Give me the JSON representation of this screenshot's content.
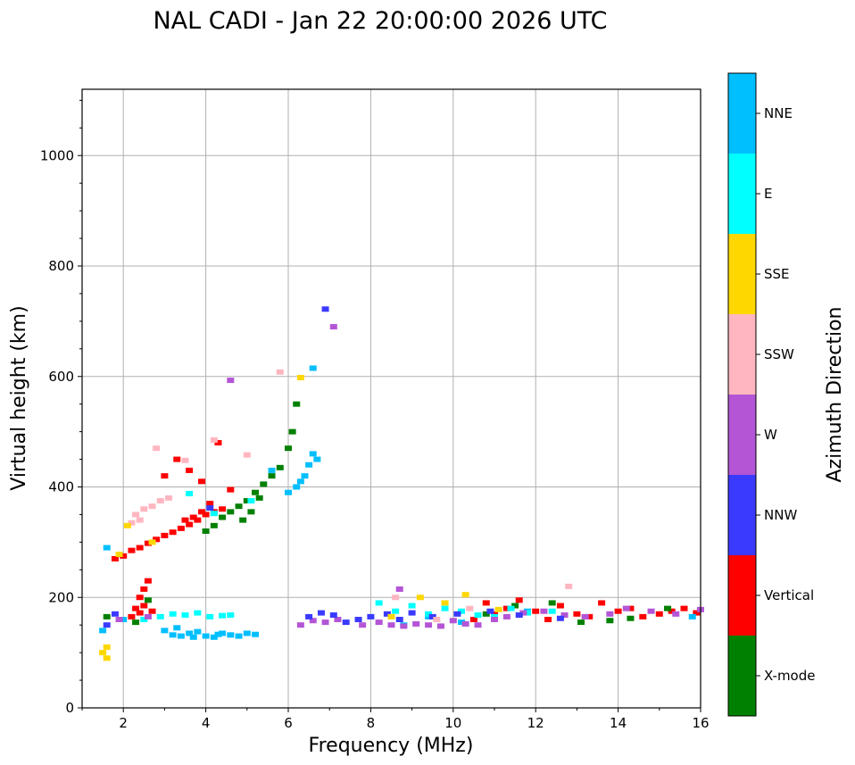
{
  "chart_data": {
    "type": "scatter",
    "title": "NAL CADI - Jan 22 20:00:00 2026 UTC",
    "xlabel": "Frequency (MHz)",
    "ylabel": "Virtual height (km)",
    "xlim": [
      1,
      16
    ],
    "ylim": [
      0,
      1120
    ],
    "xticks": [
      2,
      4,
      6,
      8,
      10,
      12,
      14,
      16
    ],
    "yticks": [
      0,
      200,
      400,
      600,
      800,
      1000
    ],
    "grid": true,
    "colorbar": {
      "label": "Azimuth Direction",
      "categories": [
        {
          "name": "X-mode",
          "color": "#008000"
        },
        {
          "name": "Vertical",
          "color": "#ff0000"
        },
        {
          "name": "NNW",
          "color": "#3a3aff"
        },
        {
          "name": "W",
          "color": "#b455d6"
        },
        {
          "name": "SSW",
          "color": "#ffb6c1"
        },
        {
          "name": "SSE",
          "color": "#ffd700"
        },
        {
          "name": "E",
          "color": "#00ffff"
        },
        {
          "name": "NNE",
          "color": "#00bfff"
        }
      ]
    },
    "series": [
      {
        "name": "Vertical",
        "points": [
          [
            1.8,
            270
          ],
          [
            2.0,
            275
          ],
          [
            2.2,
            285
          ],
          [
            2.4,
            290
          ],
          [
            2.6,
            298
          ],
          [
            2.8,
            305
          ],
          [
            3.0,
            312
          ],
          [
            3.2,
            318
          ],
          [
            3.4,
            325
          ],
          [
            3.6,
            332
          ],
          [
            3.8,
            340
          ],
          [
            4.0,
            350
          ],
          [
            4.2,
            355
          ],
          [
            4.4,
            360
          ],
          [
            3.5,
            340
          ],
          [
            3.7,
            345
          ],
          [
            3.9,
            355
          ],
          [
            4.1,
            370
          ],
          [
            2.2,
            165
          ],
          [
            2.4,
            172
          ],
          [
            2.5,
            185
          ],
          [
            2.4,
            200
          ],
          [
            2.5,
            215
          ],
          [
            2.6,
            230
          ],
          [
            2.7,
            175
          ],
          [
            2.3,
            180
          ],
          [
            3.0,
            420
          ],
          [
            3.3,
            450
          ],
          [
            3.6,
            430
          ],
          [
            3.9,
            410
          ],
          [
            4.3,
            480
          ],
          [
            4.6,
            395
          ],
          [
            10.5,
            160
          ],
          [
            10.8,
            190
          ],
          [
            11.0,
            170
          ],
          [
            11.3,
            180
          ],
          [
            11.6,
            195
          ],
          [
            12.0,
            175
          ],
          [
            12.3,
            160
          ],
          [
            12.6,
            185
          ],
          [
            13.0,
            170
          ],
          [
            13.3,
            165
          ],
          [
            13.6,
            190
          ],
          [
            14.0,
            175
          ],
          [
            14.3,
            180
          ],
          [
            14.6,
            165
          ],
          [
            15.0,
            170
          ],
          [
            15.3,
            175
          ],
          [
            15.6,
            180
          ],
          [
            15.9,
            172
          ]
        ]
      },
      {
        "name": "X-mode",
        "points": [
          [
            4.0,
            320
          ],
          [
            4.2,
            330
          ],
          [
            4.4,
            345
          ],
          [
            4.6,
            355
          ],
          [
            4.8,
            365
          ],
          [
            5.0,
            375
          ],
          [
            5.2,
            390
          ],
          [
            5.4,
            405
          ],
          [
            5.6,
            420
          ],
          [
            5.8,
            435
          ],
          [
            6.0,
            470
          ],
          [
            6.1,
            500
          ],
          [
            6.2,
            550
          ],
          [
            5.1,
            355
          ],
          [
            4.9,
            340
          ],
          [
            5.3,
            380
          ],
          [
            1.6,
            165
          ],
          [
            2.3,
            155
          ],
          [
            2.6,
            195
          ],
          [
            10.8,
            170
          ],
          [
            11.5,
            185
          ],
          [
            12.4,
            190
          ],
          [
            13.1,
            155
          ],
          [
            13.8,
            158
          ],
          [
            14.3,
            162
          ],
          [
            15.2,
            180
          ]
        ]
      },
      {
        "name": "NNE",
        "points": [
          [
            3.0,
            140
          ],
          [
            3.2,
            132
          ],
          [
            3.4,
            130
          ],
          [
            3.6,
            135
          ],
          [
            3.8,
            138
          ],
          [
            4.0,
            130
          ],
          [
            4.2,
            128
          ],
          [
            4.4,
            135
          ],
          [
            4.6,
            132
          ],
          [
            4.8,
            130
          ],
          [
            5.0,
            135
          ],
          [
            5.2,
            133
          ],
          [
            3.3,
            145
          ],
          [
            3.7,
            128
          ],
          [
            4.3,
            133
          ],
          [
            6.0,
            390
          ],
          [
            6.2,
            400
          ],
          [
            6.4,
            420
          ],
          [
            6.5,
            440
          ],
          [
            6.6,
            460
          ],
          [
            6.3,
            410
          ],
          [
            6.7,
            450
          ],
          [
            5.6,
            430
          ],
          [
            6.6,
            615
          ],
          [
            1.6,
            290
          ],
          [
            1.5,
            140
          ],
          [
            2.0,
            160
          ],
          [
            8.8,
            150
          ],
          [
            9.4,
            165
          ],
          [
            10.2,
            155
          ],
          [
            11.8,
            175
          ],
          [
            15.8,
            165
          ]
        ]
      },
      {
        "name": "E",
        "points": [
          [
            2.9,
            165
          ],
          [
            3.2,
            170
          ],
          [
            3.5,
            168
          ],
          [
            3.8,
            172
          ],
          [
            4.1,
            165
          ],
          [
            4.4,
            167
          ],
          [
            4.6,
            168
          ],
          [
            3.6,
            388
          ],
          [
            4.2,
            352
          ],
          [
            5.1,
            375
          ],
          [
            8.2,
            190
          ],
          [
            8.6,
            175
          ],
          [
            9.0,
            185
          ],
          [
            9.4,
            170
          ],
          [
            9.8,
            180
          ],
          [
            10.2,
            175
          ],
          [
            10.6,
            168
          ],
          [
            11.0,
            165
          ],
          [
            11.4,
            180
          ],
          [
            11.8,
            172
          ],
          [
            12.4,
            175
          ],
          [
            2.5,
            160
          ]
        ]
      },
      {
        "name": "W",
        "points": [
          [
            6.3,
            150
          ],
          [
            6.6,
            158
          ],
          [
            6.9,
            155
          ],
          [
            7.2,
            160
          ],
          [
            7.8,
            150
          ],
          [
            8.2,
            155
          ],
          [
            8.5,
            150
          ],
          [
            8.8,
            148
          ],
          [
            9.1,
            152
          ],
          [
            9.4,
            150
          ],
          [
            9.7,
            148
          ],
          [
            10.0,
            158
          ],
          [
            10.3,
            152
          ],
          [
            10.6,
            150
          ],
          [
            11.0,
            160
          ],
          [
            11.3,
            165
          ],
          [
            11.7,
            172
          ],
          [
            12.2,
            175
          ],
          [
            12.7,
            168
          ],
          [
            13.2,
            165
          ],
          [
            13.8,
            170
          ],
          [
            14.2,
            180
          ],
          [
            14.8,
            175
          ],
          [
            15.4,
            170
          ],
          [
            16.0,
            178
          ],
          [
            4.6,
            593
          ],
          [
            7.1,
            690
          ],
          [
            2.6,
            165
          ],
          [
            1.9,
            160
          ],
          [
            8.7,
            215
          ]
        ]
      },
      {
        "name": "NNW",
        "points": [
          [
            6.5,
            165
          ],
          [
            6.8,
            172
          ],
          [
            7.1,
            168
          ],
          [
            7.4,
            155
          ],
          [
            7.7,
            160
          ],
          [
            8.0,
            165
          ],
          [
            8.4,
            170
          ],
          [
            8.7,
            160
          ],
          [
            9.0,
            172
          ],
          [
            9.5,
            165
          ],
          [
            10.1,
            170
          ],
          [
            10.9,
            175
          ],
          [
            11.6,
            168
          ],
          [
            12.6,
            162
          ],
          [
            1.6,
            150
          ],
          [
            1.8,
            170
          ],
          [
            4.1,
            362
          ],
          [
            6.9,
            722
          ]
        ]
      },
      {
        "name": "SSW",
        "points": [
          [
            2.3,
            350
          ],
          [
            2.5,
            360
          ],
          [
            2.7,
            365
          ],
          [
            2.9,
            375
          ],
          [
            2.4,
            340
          ],
          [
            3.1,
            380
          ],
          [
            2.2,
            335
          ],
          [
            2.8,
            470
          ],
          [
            3.5,
            448
          ],
          [
            4.2,
            485
          ],
          [
            5.0,
            458
          ],
          [
            5.8,
            608
          ],
          [
            8.6,
            200
          ],
          [
            9.6,
            160
          ],
          [
            10.4,
            180
          ],
          [
            12.8,
            220
          ]
        ]
      },
      {
        "name": "SSE",
        "points": [
          [
            1.5,
            100
          ],
          [
            1.6,
            90
          ],
          [
            1.6,
            110
          ],
          [
            2.1,
            330
          ],
          [
            6.3,
            598
          ],
          [
            8.5,
            165
          ],
          [
            9.2,
            200
          ],
          [
            9.8,
            190
          ],
          [
            10.3,
            205
          ],
          [
            11.1,
            178
          ],
          [
            1.9,
            278
          ],
          [
            2.7,
            300
          ]
        ]
      }
    ]
  }
}
